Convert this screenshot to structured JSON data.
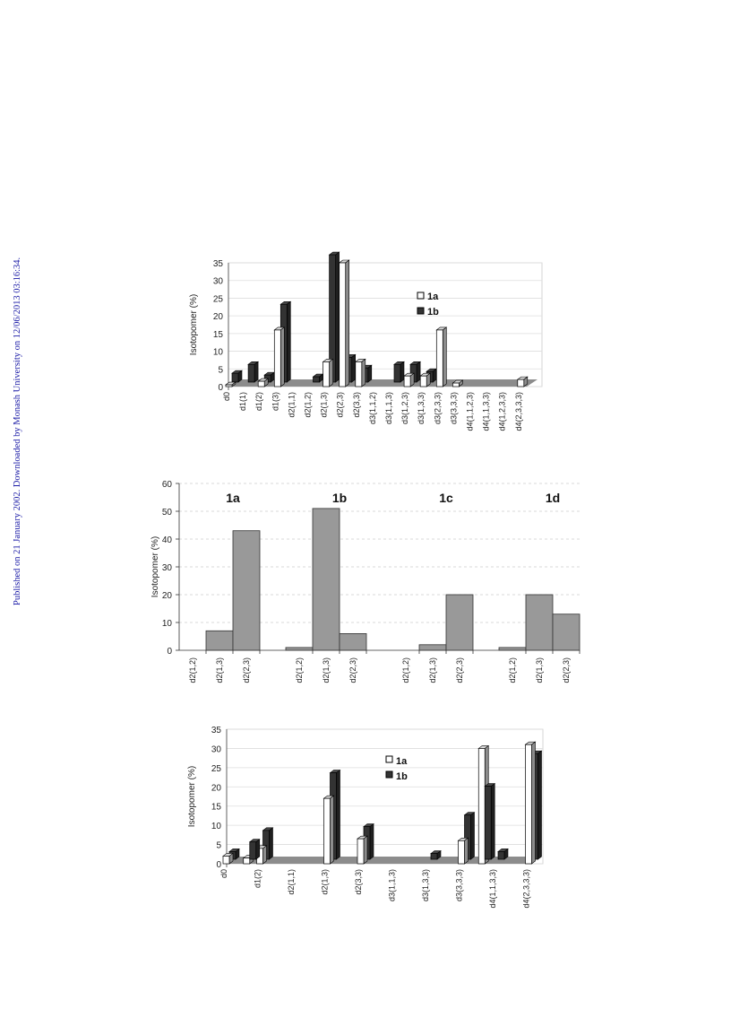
{
  "side_note": "Published on 21 January 2002. Downloaded by Monash University on 12/06/2013 03:16:34.",
  "chart_data": [
    {
      "type": "bar",
      "ylabel": "Isotopomer (%)",
      "ylim": [
        0,
        35
      ],
      "yticks": [
        0,
        5,
        10,
        15,
        20,
        25,
        30,
        35
      ],
      "categories": [
        "d0",
        "d1(1)",
        "d1(2)",
        "d1(3)",
        "d2(1,1)",
        "d2(1,2)",
        "d2(1,3)",
        "d2(2,3)",
        "d2(3,3)",
        "d3(1,1,2)",
        "d3(1,1,3)",
        "d3(1,2,3)",
        "d3(1,3,3)",
        "d3(2,3,3)",
        "d3(3,3,3)",
        "d4(1,1,2,3)",
        "d4(1,1,3,3)",
        "d4(1,2,3,3)",
        "d4(2,3,3,3)"
      ],
      "series": [
        {
          "name": "1a",
          "color": "#ffffff",
          "values": [
            0.5,
            0,
            1.5,
            16,
            0,
            0,
            7,
            35,
            7,
            0,
            0,
            3,
            3,
            16,
            1,
            0,
            0,
            0,
            2
          ]
        },
        {
          "name": "1b",
          "color": "#333333",
          "values": [
            2.5,
            5,
            2,
            22,
            0,
            1.5,
            36,
            7,
            4,
            0,
            5,
            5,
            3,
            0,
            0,
            0,
            0,
            0,
            0
          ]
        }
      ],
      "legend": [
        "1a",
        "1b"
      ],
      "legend_position": "top-right",
      "grid": true
    },
    {
      "type": "bar",
      "ylabel": "Isotopomer (%)",
      "ylim": [
        0,
        60
      ],
      "yticks": [
        0,
        10,
        20,
        30,
        40,
        50,
        60
      ],
      "groups": [
        {
          "label": "1a",
          "categories": [
            "d2(1,2)",
            "d2(1,3)",
            "d2(2,3)"
          ],
          "values": [
            0,
            7,
            43
          ]
        },
        {
          "label": "1b",
          "categories": [
            "d2(1,2)",
            "d2(1,3)",
            "d2(2,3)"
          ],
          "values": [
            1,
            51,
            6
          ]
        },
        {
          "label": "1c",
          "categories": [
            "d2(1,2)",
            "d2(1,3)",
            "d2(2,3)"
          ],
          "values": [
            0,
            2,
            20
          ]
        },
        {
          "label": "1d",
          "categories": [
            "d2(1,2)",
            "d2(1,3)",
            "d2(2,3)"
          ],
          "values": [
            1,
            20,
            13
          ]
        }
      ],
      "color": "#999999",
      "grid": true
    },
    {
      "type": "bar",
      "ylabel": "Isotopomer (%)",
      "ylim": [
        0,
        35
      ],
      "yticks": [
        0,
        5,
        10,
        15,
        20,
        25,
        30,
        35
      ],
      "categories": [
        "d0",
        "d1(2)",
        "d2(1,1)",
        "d2(1,3)",
        "d2(3,3)",
        "d3(1,1,3)",
        "d3(1,3,3)",
        "d3(3,3,3)",
        "d4(1,1,3,3)",
        "d4(2,3,3,3)"
      ],
      "series": [
        {
          "name": "1a",
          "color": "#ffffff",
          "values": [
            2,
            4,
            0,
            17,
            6.5,
            0,
            0,
            6,
            0,
            31
          ]
        },
        {
          "name": "1b",
          "color": "#333333",
          "values": [
            2,
            7.5,
            0,
            22.5,
            8.5,
            0,
            1.5,
            11.5,
            2,
            27.5
          ]
        }
      ],
      "extra_bars": [
        {
          "after_category": "d0",
          "name": "1a",
          "value": 1.5
        },
        {
          "after_category": "d0",
          "name": "1b",
          "value": 4.5
        },
        {
          "after_category": "d3(3,3,3)",
          "name": "1a",
          "value": 30
        },
        {
          "after_category": "d3(3,3,3)",
          "name": "1b",
          "value": 19
        }
      ],
      "legend": [
        "1a",
        "1b"
      ],
      "legend_position": "top-right",
      "grid": true
    }
  ]
}
